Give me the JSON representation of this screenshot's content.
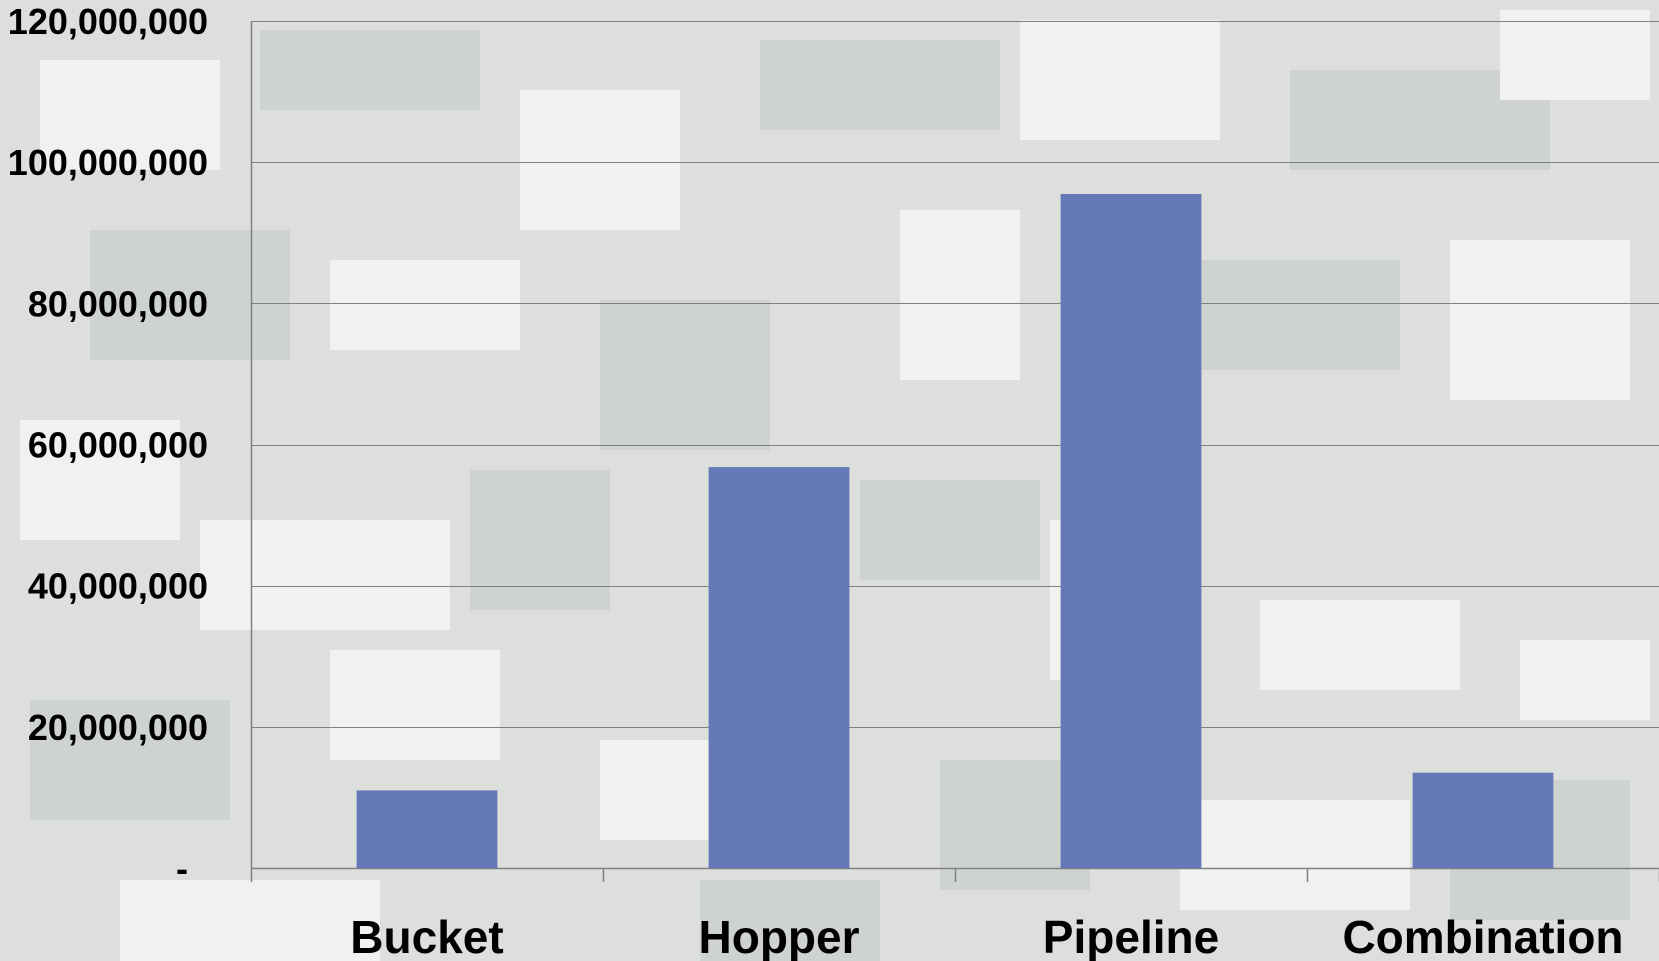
{
  "chart_data": {
    "type": "bar",
    "title": "",
    "xlabel": "",
    "ylabel": "",
    "categories": [
      "Bucket",
      "Hopper",
      "Pipeline",
      "Combination"
    ],
    "values": [
      11000000,
      56800000,
      95500000,
      13500000
    ],
    "ylim": [
      0,
      120000000
    ],
    "y_ticks": [
      {
        "value": 0,
        "label": "-"
      },
      {
        "value": 20000000,
        "label": "20,000,000"
      },
      {
        "value": 40000000,
        "label": "40,000,000"
      },
      {
        "value": 60000000,
        "label": "60,000,000"
      },
      {
        "value": 80000000,
        "label": "80,000,000"
      },
      {
        "value": 100000000,
        "label": "100,000,000"
      },
      {
        "value": 120000000,
        "label": "120,000,000"
      }
    ],
    "grid": true,
    "legend": "none",
    "bar_color": "#6578b8",
    "background": "camouflage"
  },
  "colors": {
    "bar": "#6578b8",
    "grid": "#808080",
    "text": "#000000"
  }
}
